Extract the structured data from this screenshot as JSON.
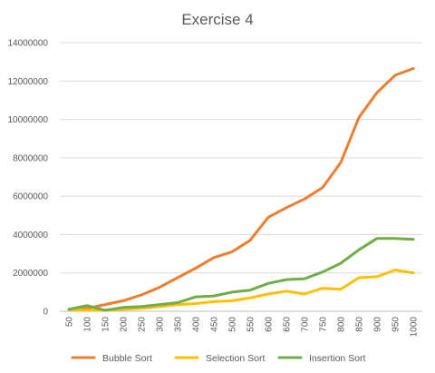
{
  "chart_data": {
    "type": "line",
    "title": "Exercise 4",
    "xlabel": "",
    "ylabel": "",
    "ylim": [
      0,
      14000000
    ],
    "yticks": [
      "0",
      "2000000",
      "4000000",
      "6000000",
      "8000000",
      "10000000",
      "12000000",
      "14000000"
    ],
    "grid": true,
    "legend": "bottom",
    "categories": [
      "50",
      "100",
      "150",
      "200",
      "250",
      "300",
      "350",
      "400",
      "450",
      "500",
      "550",
      "600",
      "650",
      "700",
      "750",
      "800",
      "850",
      "900",
      "950",
      "1000"
    ],
    "series": [
      {
        "name": "Bubble Sort",
        "color": "#ED7D31",
        "values": [
          100000,
          150000,
          350000,
          550000,
          850000,
          1250000,
          1750000,
          2250000,
          2800000,
          3100000,
          3700000,
          4900000,
          5400000,
          5850000,
          6450000,
          7750000,
          10100000,
          11400000,
          12300000,
          12650000
        ]
      },
      {
        "name": "Selection Sort",
        "color": "#FFC000",
        "values": [
          80000,
          50000,
          50000,
          100000,
          150000,
          250000,
          350000,
          400000,
          500000,
          550000,
          700000,
          900000,
          1050000,
          900000,
          1200000,
          1150000,
          1750000,
          1800000,
          2150000,
          2000000
        ]
      },
      {
        "name": "Insertion Sort",
        "color": "#70AD47",
        "values": [
          100000,
          300000,
          50000,
          200000,
          250000,
          350000,
          450000,
          750000,
          800000,
          1000000,
          1100000,
          1450000,
          1650000,
          1700000,
          2050000,
          2500000,
          3200000,
          3800000,
          3800000,
          3750000
        ]
      }
    ]
  }
}
